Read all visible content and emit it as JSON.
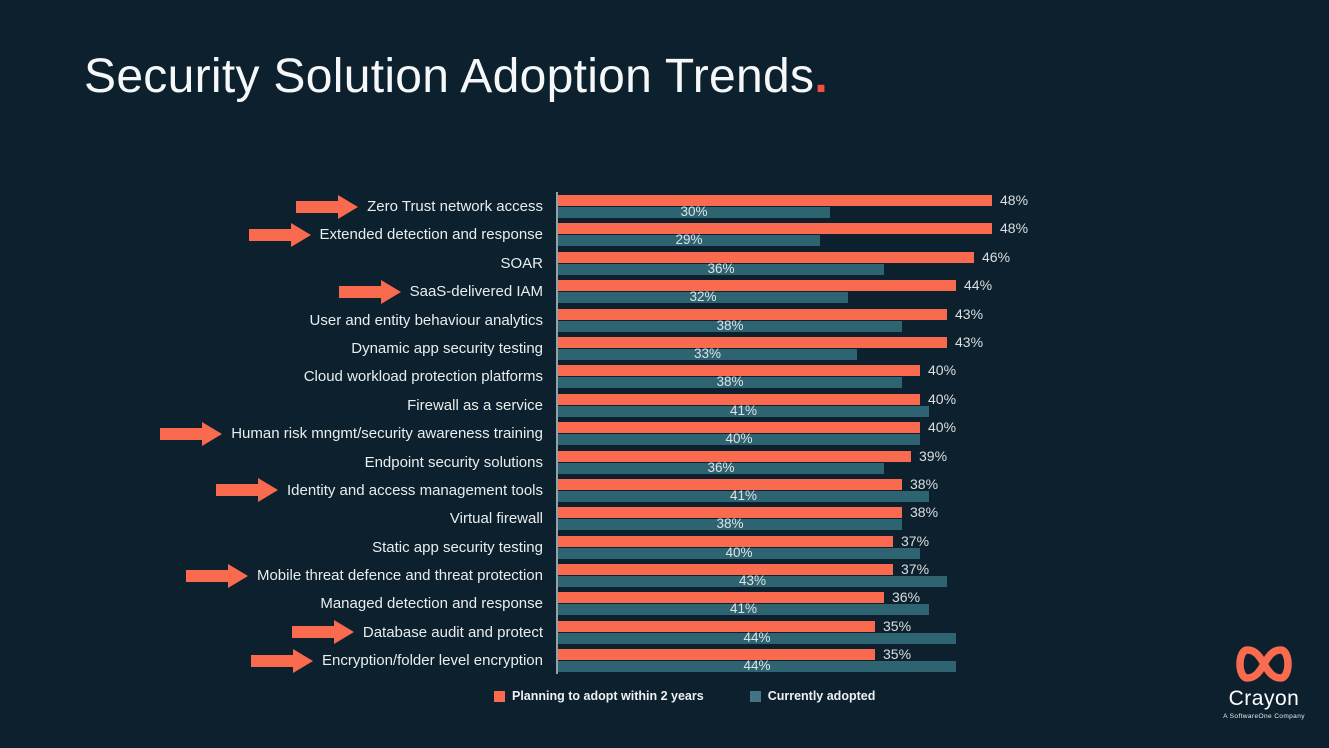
{
  "title": {
    "text": "Security Solution Adoption Trends",
    "period": "."
  },
  "chart_data": {
    "type": "bar",
    "orientation": "horizontal",
    "value_suffix": "%",
    "xlim": [
      0,
      50
    ],
    "grid": false,
    "legend_position": "bottom",
    "categories": [
      "Zero Trust network access",
      "Extended detection and response",
      "SOAR",
      "SaaS-delivered IAM",
      "User and entity behaviour analytics",
      "Dynamic app security testing",
      "Cloud workload protection platforms",
      "Firewall as a service",
      "Human risk mngmt/security awareness training",
      "Endpoint security solutions",
      "Identity and access management tools",
      "Virtual firewall",
      "Static app security testing",
      "Mobile threat defence and threat protection",
      "Managed detection and response",
      "Database audit and protect",
      "Encryption/folder level encryption"
    ],
    "series": [
      {
        "name": "Planning to adopt within 2 years",
        "color": "#fa6a4e",
        "values": [
          48,
          48,
          46,
          44,
          43,
          43,
          40,
          40,
          40,
          39,
          38,
          38,
          37,
          37,
          36,
          35,
          35
        ]
      },
      {
        "name": "Currently adopted",
        "color": "#2e6372",
        "values": [
          30,
          29,
          36,
          32,
          38,
          33,
          38,
          41,
          40,
          36,
          41,
          38,
          40,
          43,
          41,
          44,
          44
        ]
      }
    ],
    "highlight_rows": [
      0,
      1,
      3,
      8,
      10,
      13,
      15,
      16
    ]
  },
  "legend": [
    {
      "label": "Planning to adopt within 2 years",
      "color": "#fa6a4e"
    },
    {
      "label": "Currently adopted",
      "color": "#417585"
    }
  ],
  "logo": {
    "name": "Crayon",
    "tagline": "A SoftwareOne Company",
    "color": "#fa6a4e"
  },
  "colors": {
    "background": "#0c212d",
    "accent": "#f4523d",
    "bar_orange": "#fa6a4e",
    "bar_teal": "#2e6372",
    "axis_line": "#a9bac1",
    "text": "#e9edee"
  }
}
